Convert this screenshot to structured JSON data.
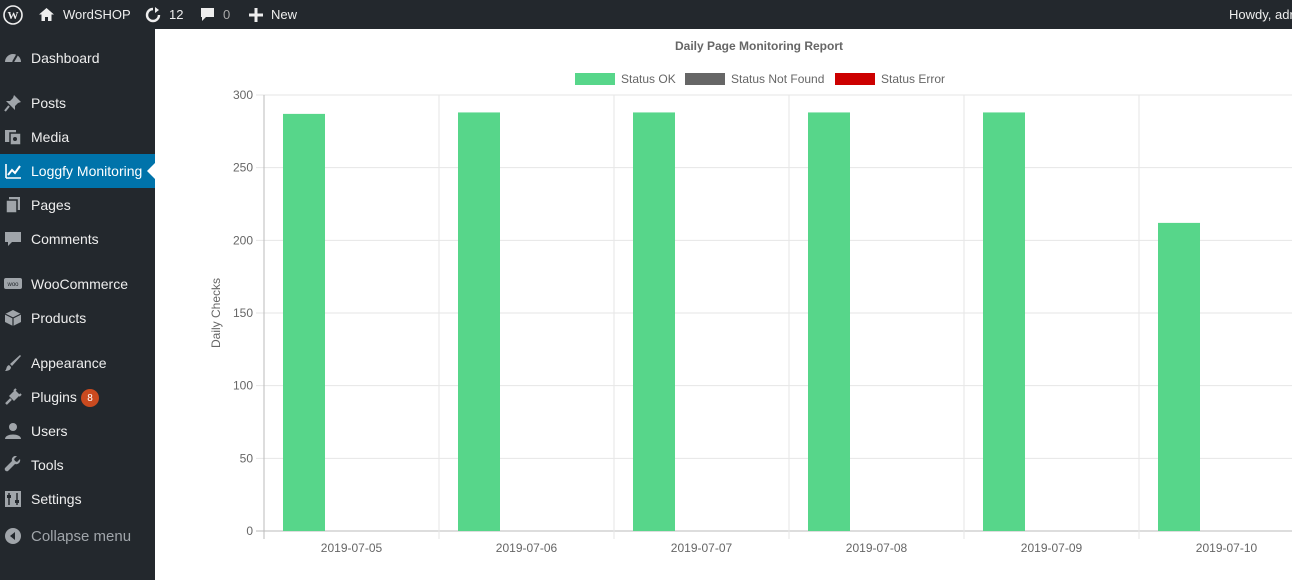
{
  "adminbar": {
    "site_name": "WordSHOP",
    "updates_count": "12",
    "comments_count": "0",
    "new_label": "New",
    "howdy": "Howdy, adr"
  },
  "sidebar": {
    "items": [
      {
        "label": "Dashboard",
        "icon": "dashboard-icon"
      },
      {
        "label": "Posts",
        "icon": "pin-icon"
      },
      {
        "label": "Media",
        "icon": "media-icon"
      },
      {
        "label": "Loggfy Monitoring",
        "icon": "chart-line-icon",
        "current": true
      },
      {
        "label": "Pages",
        "icon": "pages-icon"
      },
      {
        "label": "Comments",
        "icon": "comment-icon"
      },
      {
        "label": "WooCommerce",
        "icon": "woocommerce-icon"
      },
      {
        "label": "Products",
        "icon": "box-icon"
      },
      {
        "label": "Appearance",
        "icon": "brush-icon"
      },
      {
        "label": "Plugins",
        "icon": "plug-icon",
        "badge": "8"
      },
      {
        "label": "Users",
        "icon": "user-icon"
      },
      {
        "label": "Tools",
        "icon": "wrench-icon"
      },
      {
        "label": "Settings",
        "icon": "settings-icon"
      }
    ],
    "collapse_label": "Collapse menu"
  },
  "colors": {
    "ok": "#57d68a",
    "not_found": "#666666",
    "error": "#cc0000",
    "current_menu": "#0073aa"
  },
  "chart_data": {
    "type": "bar",
    "title": "Daily Page Monitoring Report",
    "ylabel": "Daily Checks",
    "xlabel": "",
    "categories": [
      "2019-07-05",
      "2019-07-06",
      "2019-07-07",
      "2019-07-08",
      "2019-07-09",
      "2019-07-10"
    ],
    "series": [
      {
        "name": "Status OK",
        "values": [
          287,
          288,
          288,
          288,
          288,
          212
        ]
      },
      {
        "name": "Status Not Found",
        "values": [
          0,
          0,
          0,
          0,
          0,
          0
        ]
      },
      {
        "name": "Status Error",
        "values": [
          0,
          0,
          0,
          0,
          0,
          0
        ]
      }
    ],
    "ylim": [
      0,
      300
    ],
    "yticks": [
      "0",
      "50",
      "100",
      "150",
      "200",
      "250",
      "300"
    ],
    "legend_position": "top",
    "grid": true
  }
}
